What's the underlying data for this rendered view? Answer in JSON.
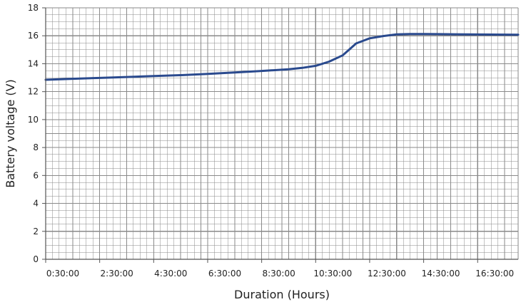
{
  "chart_data": {
    "type": "line",
    "title": "",
    "xlabel": "Duration (Hours)",
    "ylabel": "Battery voltage (V)",
    "ylim": [
      0,
      18
    ],
    "yticks": [
      "0",
      "2",
      "4",
      "6",
      "8",
      "10",
      "12",
      "14",
      "16",
      "18"
    ],
    "xlim_hours": [
      0.5,
      18.0
    ],
    "xtick_labels": [
      "0:30:00",
      "2:30:00",
      "4:30:00",
      "6:30:00",
      "8:30:00",
      "10:30:00",
      "12:30:00",
      "14:30:00",
      "16:30:00"
    ],
    "grid": true,
    "line_color": "#2a4a8e",
    "grid_color": "#8a8a8a",
    "series": [
      {
        "x_hours": [
          0.5,
          1.5,
          2.5,
          3.5,
          4.5,
          5.5,
          6.5,
          7.5,
          8.5,
          9.5,
          10.0,
          10.5,
          11.0,
          11.5,
          12.0,
          12.5,
          13.0,
          13.5,
          14.0,
          14.5,
          15.0,
          16.0,
          17.0,
          18.0
        ],
        "values": [
          12.85,
          12.92,
          12.98,
          13.05,
          13.12,
          13.18,
          13.27,
          13.37,
          13.48,
          13.6,
          13.7,
          13.85,
          14.15,
          14.6,
          15.45,
          15.82,
          15.98,
          16.1,
          16.13,
          16.13,
          16.12,
          16.1,
          16.09,
          16.08
        ]
      }
    ]
  }
}
